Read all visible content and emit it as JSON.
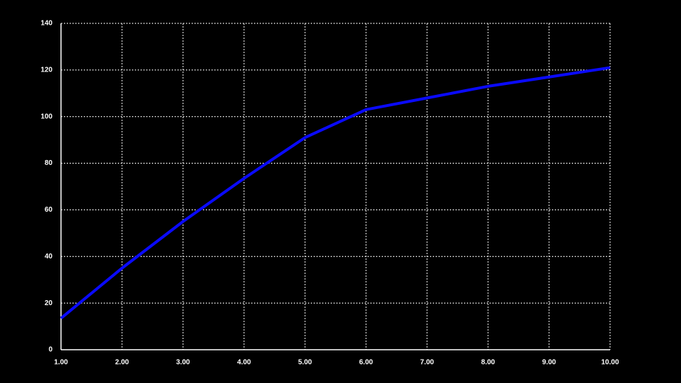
{
  "chart_data": {
    "type": "line",
    "x": [
      1,
      2,
      3,
      4,
      5,
      6,
      7,
      8,
      9,
      10
    ],
    "series": [
      {
        "color": "#0a0aff",
        "values": [
          13.5,
          35,
          55,
          73.5,
          91,
          103,
          108,
          113,
          117,
          121
        ]
      }
    ],
    "xlim": [
      1,
      10
    ],
    "xticks": [
      {
        "value": 1,
        "label": "1.00"
      },
      {
        "value": 2,
        "label": "2.00"
      },
      {
        "value": 3,
        "label": "3.00"
      },
      {
        "value": 4,
        "label": "4.00"
      },
      {
        "value": 5,
        "label": "5.00"
      },
      {
        "value": 6,
        "label": "6.00"
      },
      {
        "value": 7,
        "label": "7.00"
      },
      {
        "value": 8,
        "label": "8.00"
      },
      {
        "value": 9,
        "label": "9.00"
      },
      {
        "value": 10,
        "label": "10.00"
      }
    ],
    "ylim": [
      0,
      140
    ],
    "yticks": [
      0,
      20,
      40,
      60,
      80,
      100,
      120,
      140
    ],
    "grid": true
  }
}
